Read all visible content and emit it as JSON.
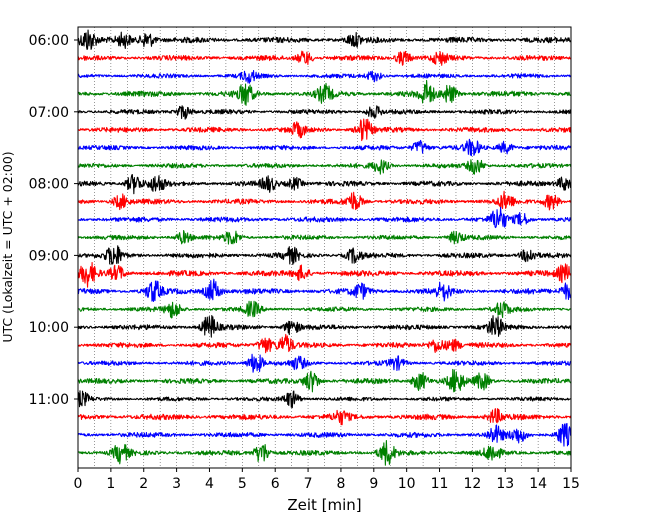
{
  "chart_data": {
    "type": "line",
    "title": "",
    "xlabel": "Zeit  [min]",
    "ylabel": "UTC (Lokalzeit = UTC + 02:00)",
    "xlim": [
      0,
      15
    ],
    "x_ticks": [
      0,
      1,
      2,
      3,
      4,
      5,
      6,
      7,
      8,
      9,
      10,
      11,
      12,
      13,
      14,
      15
    ],
    "x_minor_step": 0.5,
    "y_ticks": [
      {
        "label": "06:00",
        "trace_index": 0
      },
      {
        "label": "07:00",
        "trace_index": 4
      },
      {
        "label": "08:00",
        "trace_index": 8
      },
      {
        "label": "09:00",
        "trace_index": 12
      },
      {
        "label": "10:00",
        "trace_index": 16
      },
      {
        "label": "11:00",
        "trace_index": 20
      }
    ],
    "grid": "vertical-dotted",
    "legend": "none",
    "trace_interval_min": 15,
    "traces": [
      {
        "start": "06:00",
        "color": "#000000",
        "amp": 0.55,
        "bursts": [
          [
            0.3,
            0.9
          ],
          [
            1.4,
            0.6
          ],
          [
            2.1,
            0.7
          ],
          [
            8.4,
            0.5
          ]
        ]
      },
      {
        "start": "06:15",
        "color": "#ff0000",
        "amp": 0.5,
        "bursts": [
          [
            6.9,
            0.6
          ],
          [
            9.9,
            0.6
          ],
          [
            11.0,
            0.5
          ]
        ]
      },
      {
        "start": "06:30",
        "color": "#0000ff",
        "amp": 0.42,
        "bursts": [
          [
            5.2,
            0.5
          ],
          [
            9.0,
            0.45
          ]
        ]
      },
      {
        "start": "06:45",
        "color": "#008000",
        "amp": 0.55,
        "bursts": [
          [
            5.1,
            0.9
          ],
          [
            7.5,
            0.7
          ],
          [
            10.6,
            1.0
          ],
          [
            11.3,
            0.8
          ]
        ]
      },
      {
        "start": "07:00",
        "color": "#000000",
        "amp": 0.45,
        "bursts": [
          [
            3.2,
            0.6
          ],
          [
            9.0,
            0.5
          ]
        ]
      },
      {
        "start": "07:15",
        "color": "#ff0000",
        "amp": 0.5,
        "bursts": [
          [
            8.7,
            1.0
          ],
          [
            6.7,
            0.55
          ]
        ]
      },
      {
        "start": "07:30",
        "color": "#0000ff",
        "amp": 0.45,
        "bursts": [
          [
            10.4,
            0.6
          ],
          [
            12.0,
            0.7
          ],
          [
            13.0,
            0.5
          ]
        ]
      },
      {
        "start": "07:45",
        "color": "#008000",
        "amp": 0.45,
        "bursts": [
          [
            9.2,
            0.6
          ],
          [
            12.1,
            0.7
          ]
        ]
      },
      {
        "start": "08:00",
        "color": "#000000",
        "amp": 0.5,
        "bursts": [
          [
            1.7,
            0.8
          ],
          [
            2.4,
            0.7
          ],
          [
            5.8,
            0.6
          ],
          [
            6.6,
            0.5
          ],
          [
            14.8,
            0.6
          ]
        ]
      },
      {
        "start": "08:15",
        "color": "#ff0000",
        "amp": 0.5,
        "bursts": [
          [
            1.3,
            0.6
          ],
          [
            8.4,
            0.8
          ],
          [
            13.0,
            0.7
          ],
          [
            14.4,
            0.7
          ]
        ]
      },
      {
        "start": "08:30",
        "color": "#0000ff",
        "amp": 0.5,
        "bursts": [
          [
            12.8,
            1.0
          ],
          [
            13.5,
            0.5
          ]
        ]
      },
      {
        "start": "08:45",
        "color": "#008000",
        "amp": 0.45,
        "bursts": [
          [
            3.2,
            0.5
          ],
          [
            4.7,
            0.6
          ],
          [
            11.5,
            0.5
          ]
        ]
      },
      {
        "start": "09:00",
        "color": "#000000",
        "amp": 0.5,
        "bursts": [
          [
            1.1,
            0.9
          ],
          [
            6.5,
            0.6
          ],
          [
            8.4,
            0.6
          ],
          [
            13.7,
            0.6
          ]
        ]
      },
      {
        "start": "09:15",
        "color": "#ff0000",
        "amp": 0.55,
        "bursts": [
          [
            0.3,
            1.0
          ],
          [
            1.2,
            0.6
          ],
          [
            6.8,
            0.6
          ],
          [
            14.8,
            0.7
          ]
        ]
      },
      {
        "start": "09:30",
        "color": "#0000ff",
        "amp": 0.55,
        "bursts": [
          [
            2.3,
            0.9
          ],
          [
            4.1,
            1.0
          ],
          [
            8.6,
            0.6
          ],
          [
            11.1,
            0.7
          ],
          [
            14.9,
            0.7
          ]
        ]
      },
      {
        "start": "09:45",
        "color": "#008000",
        "amp": 0.45,
        "bursts": [
          [
            2.9,
            0.7
          ],
          [
            5.3,
            0.6
          ],
          [
            12.9,
            0.6
          ]
        ]
      },
      {
        "start": "10:00",
        "color": "#000000",
        "amp": 0.5,
        "bursts": [
          [
            4.0,
            1.0
          ],
          [
            6.5,
            0.6
          ],
          [
            12.7,
            0.9
          ]
        ]
      },
      {
        "start": "10:15",
        "color": "#ff0000",
        "amp": 0.5,
        "bursts": [
          [
            5.7,
            0.7
          ],
          [
            6.3,
            0.8
          ],
          [
            10.9,
            0.6
          ],
          [
            11.4,
            0.5
          ]
        ]
      },
      {
        "start": "10:30",
        "color": "#0000ff",
        "amp": 0.45,
        "bursts": [
          [
            5.4,
            0.9
          ],
          [
            9.7,
            0.5
          ],
          [
            6.7,
            0.5
          ]
        ]
      },
      {
        "start": "10:45",
        "color": "#008000",
        "amp": 0.5,
        "bursts": [
          [
            7.1,
            0.9
          ],
          [
            10.4,
            0.8
          ],
          [
            11.5,
            1.0
          ],
          [
            12.3,
            0.7
          ]
        ]
      },
      {
        "start": "11:00",
        "color": "#000000",
        "amp": 0.4,
        "bursts": [
          [
            0.1,
            0.6
          ],
          [
            6.5,
            0.7
          ]
        ]
      },
      {
        "start": "11:15",
        "color": "#ff0000",
        "amp": 0.55,
        "bursts": [
          [
            8.0,
            0.5
          ],
          [
            12.7,
            0.6
          ]
        ]
      },
      {
        "start": "11:30",
        "color": "#0000ff",
        "amp": 0.5,
        "bursts": [
          [
            12.7,
            0.7
          ],
          [
            13.4,
            0.6
          ],
          [
            14.8,
            1.0
          ]
        ]
      },
      {
        "start": "11:45",
        "color": "#008000",
        "amp": 0.5,
        "bursts": [
          [
            1.3,
            0.8
          ],
          [
            5.6,
            0.9
          ],
          [
            9.4,
            1.0
          ],
          [
            12.6,
            0.7
          ]
        ]
      }
    ]
  }
}
